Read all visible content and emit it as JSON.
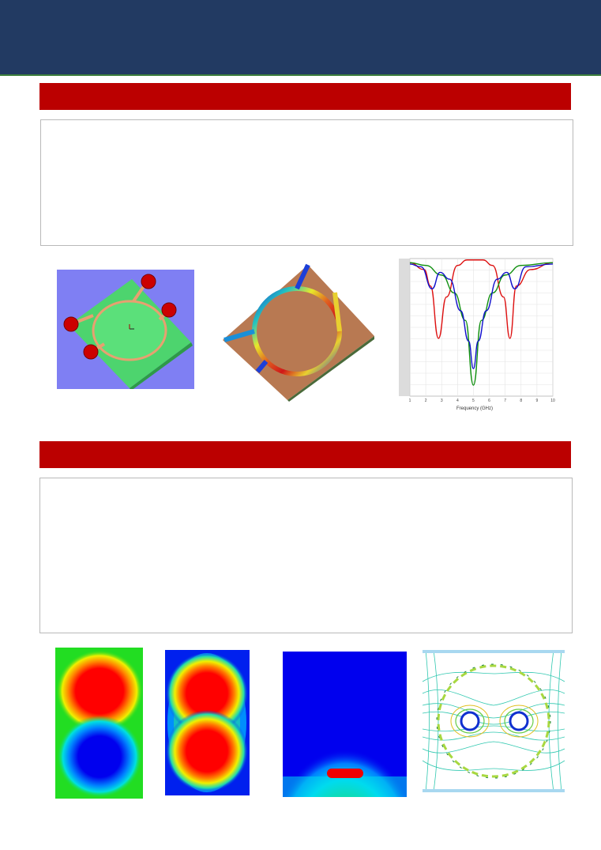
{
  "header": {
    "banner_color": "#223a62"
  },
  "sections": [
    {
      "bar_color": "#bb0000"
    },
    {
      "bar_color": "#bb0000"
    }
  ],
  "figures": {
    "circuit_model": {
      "icon": "3d-circuit-model"
    },
    "surface_field": {
      "icon": "surface-current-map"
    },
    "sparam_plot": {
      "icon": "s-parameter-plot"
    },
    "field_maps": [
      "dipole-field-map",
      "dumbbell-field-map",
      "microstrip-field-map",
      "contour-field-map"
    ]
  },
  "chart_data": {
    "type": "line",
    "xlabel": "Frequency (GHz)",
    "x_ticks": [
      "1",
      "2",
      "3",
      "4",
      "5",
      "6",
      "7",
      "8",
      "9",
      "10"
    ],
    "xlim": [
      1,
      10
    ],
    "grid": true,
    "series": [
      {
        "color": "#dd1010",
        "x": [
          1,
          1.9,
          2.3,
          2.8,
          3.3,
          4,
          4.6,
          5,
          5.6,
          6.2,
          6.9,
          7.3,
          7.7,
          8.6,
          10
        ],
        "y": [
          0.97,
          0.92,
          0.8,
          0.42,
          0.72,
          0.95,
          0.99,
          0.99,
          0.99,
          0.95,
          0.72,
          0.42,
          0.8,
          0.92,
          0.97
        ]
      },
      {
        "color": "#0f8f0f",
        "x": [
          1,
          2,
          3,
          3.8,
          4.5,
          5,
          5.5,
          6.2,
          7,
          8,
          10
        ],
        "y": [
          0.97,
          0.95,
          0.88,
          0.75,
          0.55,
          0.08,
          0.55,
          0.75,
          0.88,
          0.95,
          0.97
        ]
      },
      {
        "color": "#1010cc",
        "x": [
          1,
          1.7,
          2.4,
          2.9,
          3.5,
          4.2,
          4.7,
          5,
          5.3,
          5.8,
          6.5,
          7.1,
          7.6,
          8.3,
          10
        ],
        "y": [
          0.96,
          0.94,
          0.78,
          0.9,
          0.85,
          0.62,
          0.4,
          0.2,
          0.4,
          0.62,
          0.85,
          0.9,
          0.78,
          0.94,
          0.96
        ]
      }
    ]
  },
  "footer": {
    "page_marker": "."
  }
}
